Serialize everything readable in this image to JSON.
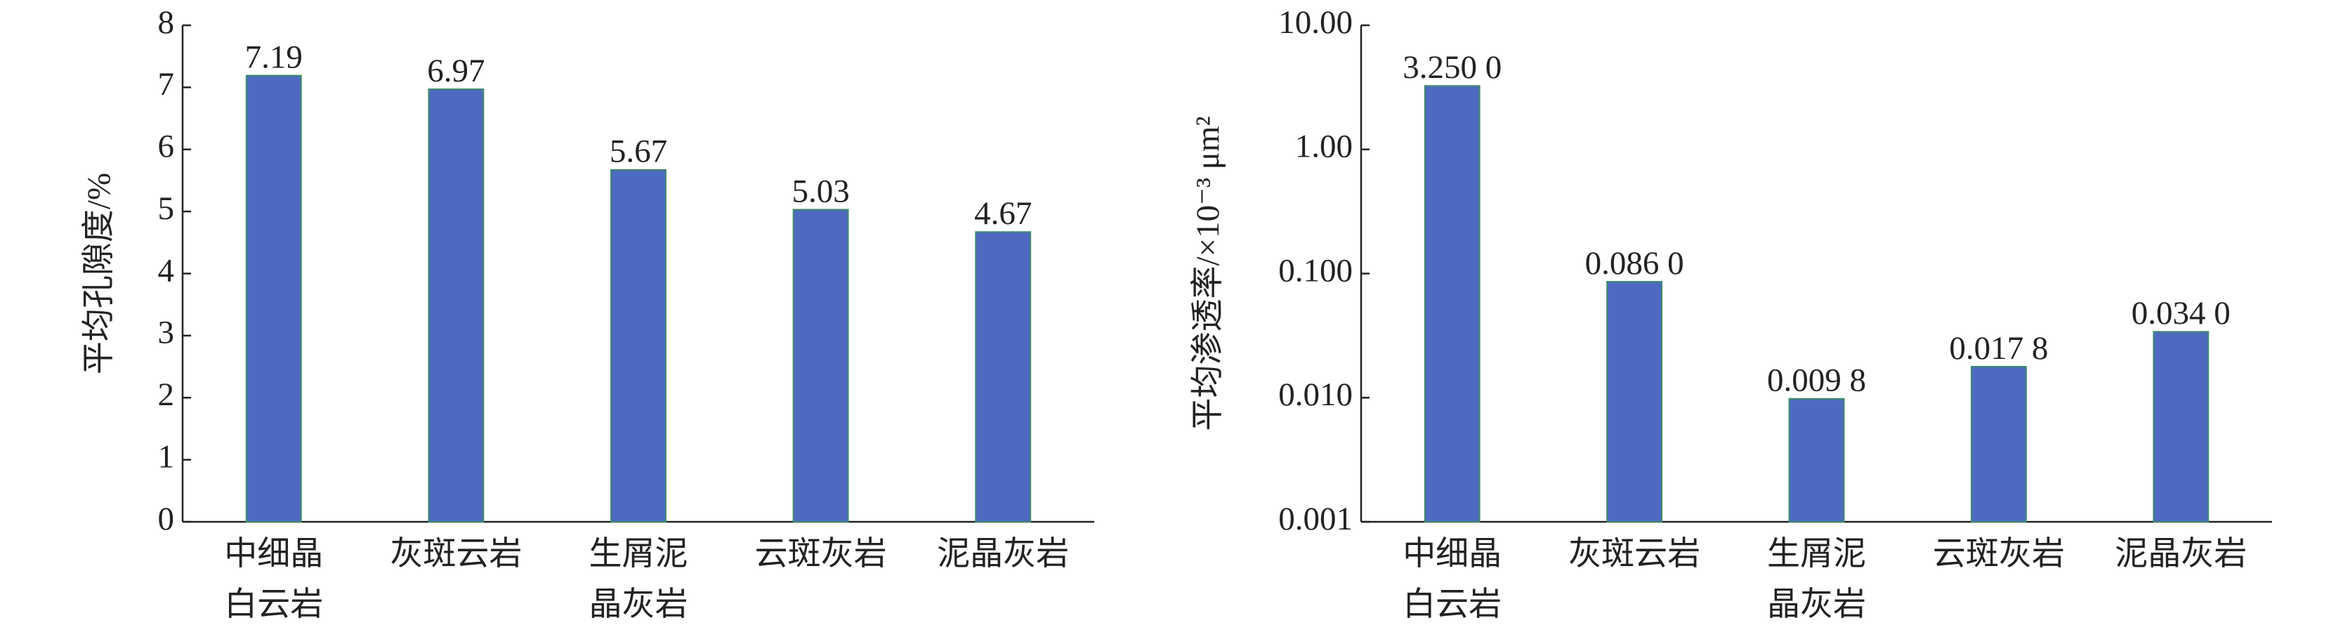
{
  "chart_data": [
    {
      "type": "bar",
      "y_label": "平均孔隙度/%",
      "categories": [
        [
          "中细晶",
          "白云岩"
        ],
        [
          "灰斑云岩"
        ],
        [
          "生屑泥",
          "晶灰岩"
        ],
        [
          "云斑灰岩"
        ],
        [
          "泥晶灰岩"
        ]
      ],
      "values": [
        7.19,
        6.97,
        5.67,
        5.03,
        4.67
      ],
      "color": "#4e6ac0",
      "ylim": [
        0,
        8
      ],
      "yticks": [
        0,
        1,
        2,
        3,
        4,
        5,
        6,
        7,
        8
      ],
      "log_scale": false
    },
    {
      "type": "bar",
      "y_label": "平均渗透率/×10⁻³ μm²",
      "categories": [
        [
          "中细晶",
          "白云岩"
        ],
        [
          "灰斑云岩"
        ],
        [
          "生屑泥",
          "晶灰岩"
        ],
        [
          "云斑灰岩"
        ],
        [
          "泥晶灰岩"
        ]
      ],
      "values": [
        3.25,
        0.086,
        0.0098,
        0.0178,
        0.034
      ],
      "value_labels": [
        "3.250 0",
        "0.086 0",
        "0.009 8",
        "0.017 8",
        "0.034 0"
      ],
      "color": "#4e6ac0",
      "ylim": [
        0.001,
        10
      ],
      "yticks": [
        {
          "value": 0.001,
          "label": "0.001"
        },
        {
          "value": 0.01,
          "label": "0.010"
        },
        {
          "value": 0.1,
          "label": "0.100"
        },
        {
          "value": 1,
          "label": "1.00"
        },
        {
          "value": 10,
          "label": "10.00"
        }
      ],
      "log_scale": true
    }
  ]
}
